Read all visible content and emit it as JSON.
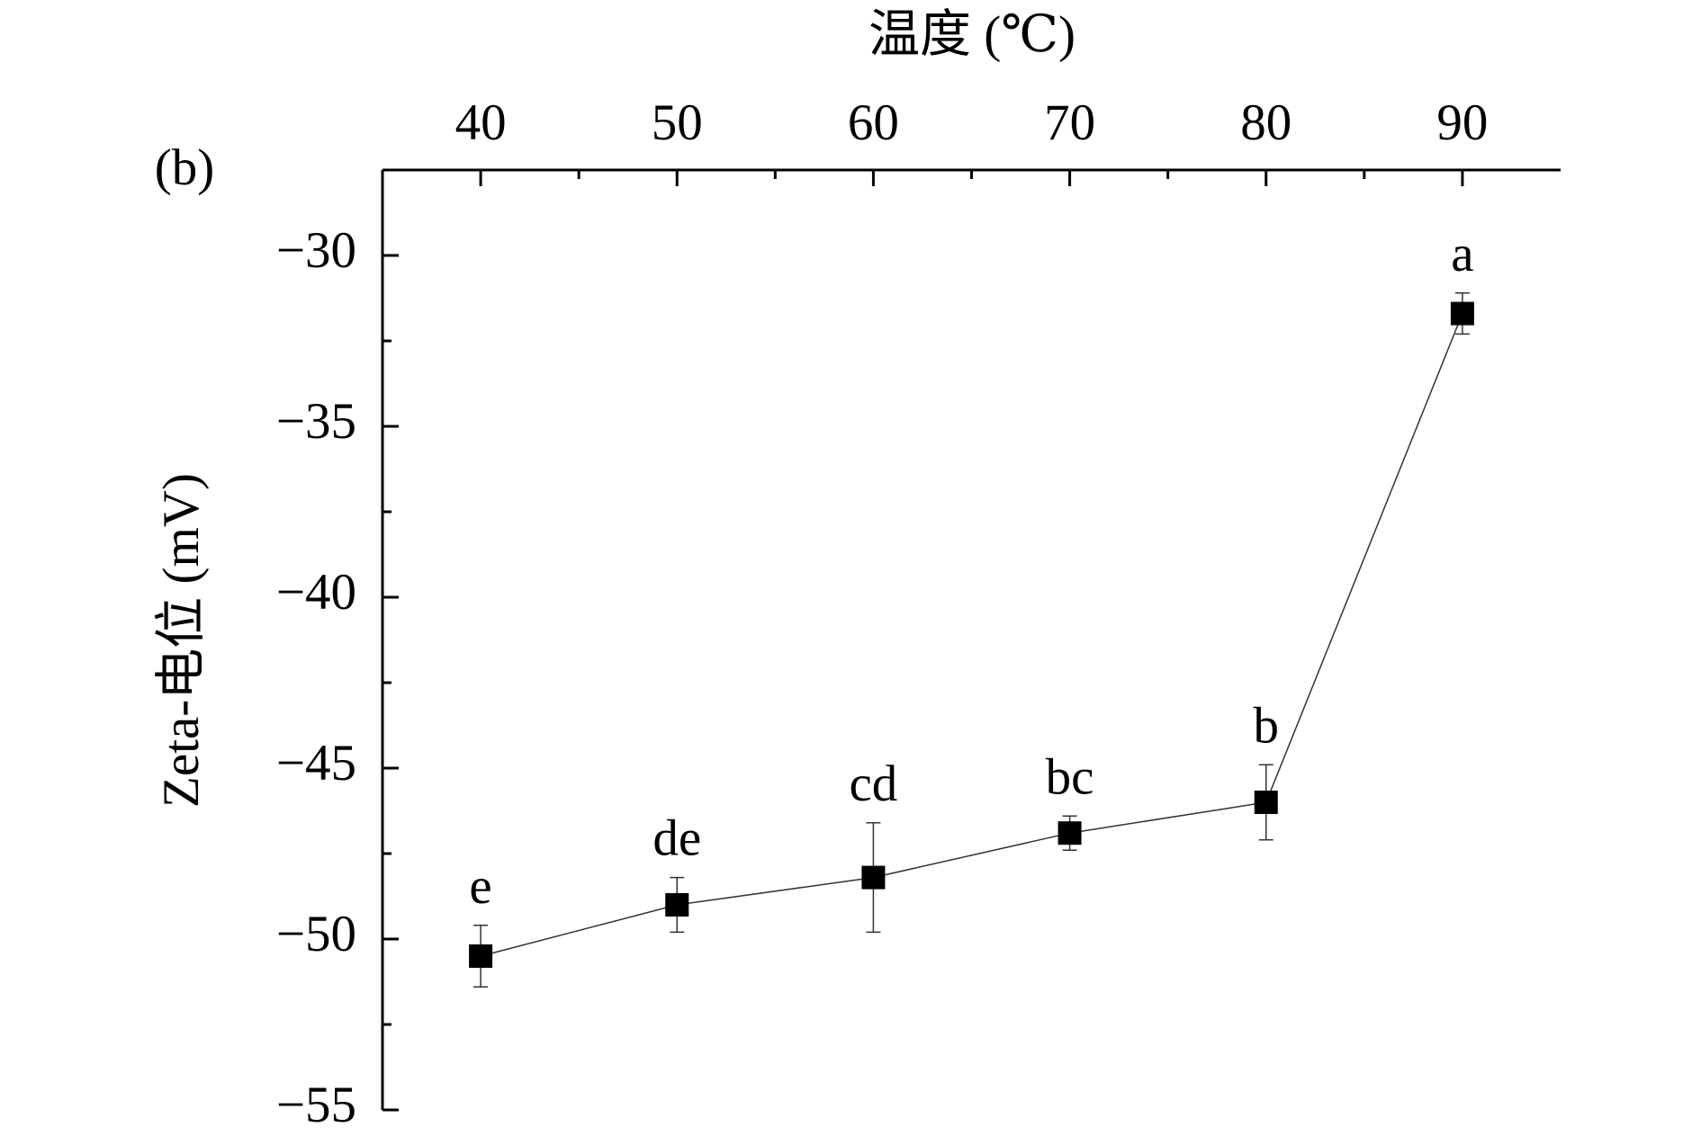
{
  "chart_data": {
    "type": "line",
    "panel_label": "(b)",
    "x_label": "温度 (℃)",
    "y_label": "Zeta-电位 (mV)",
    "x": [
      40,
      50,
      60,
      70,
      80,
      90
    ],
    "series": [
      {
        "color": "#000000",
        "values": [
          -50.5,
          -49.0,
          -48.2,
          -46.9,
          -46.0,
          -31.7
        ],
        "errors": [
          0.9,
          0.8,
          1.6,
          0.5,
          1.1,
          0.6
        ],
        "annotations": [
          "e",
          "de",
          "cd",
          "bc",
          "b",
          "a"
        ]
      }
    ],
    "xlim": [
      35,
      95
    ],
    "xticks": [
      40,
      50,
      60,
      70,
      80,
      90
    ],
    "ylim": [
      -55,
      -27.5
    ],
    "yticks": [
      {
        "value": -30,
        "label": "−30"
      },
      {
        "value": -35,
        "label": "−35"
      },
      {
        "value": -40,
        "label": "−40"
      },
      {
        "value": -45,
        "label": "−45"
      },
      {
        "value": -50,
        "label": "−50"
      },
      {
        "value": -55,
        "label": "−55"
      }
    ],
    "x_axis_position": "top"
  }
}
